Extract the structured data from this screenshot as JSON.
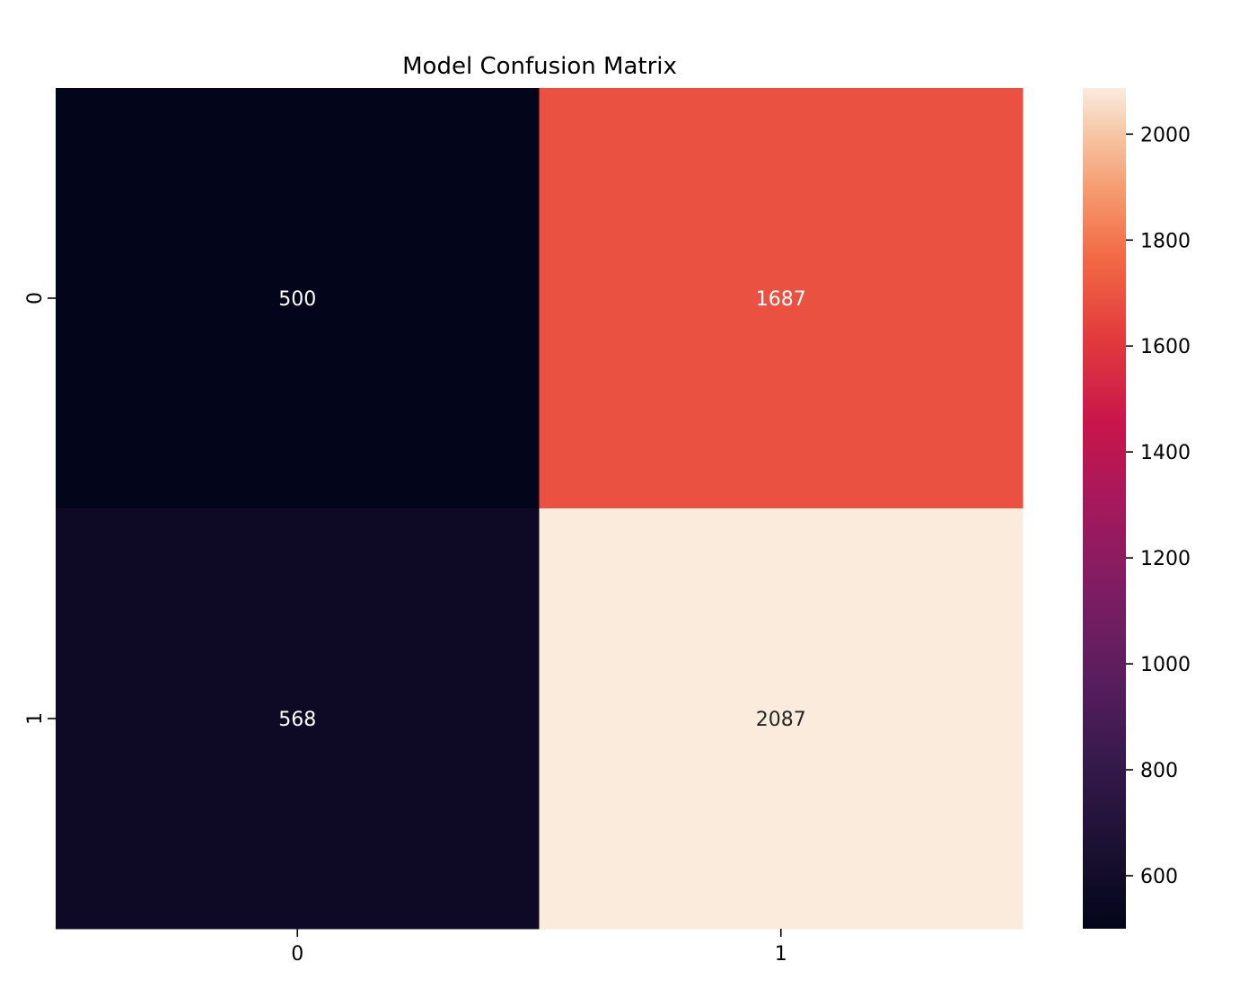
{
  "chart_data": {
    "type": "heatmap",
    "title": "Model Confusion Matrix",
    "xlabel": "",
    "ylabel": "",
    "x_labels": [
      "0",
      "1"
    ],
    "y_labels": [
      "0",
      "1"
    ],
    "values": [
      [
        500,
        1687
      ],
      [
        568,
        2087
      ]
    ],
    "cell_labels": [
      [
        "500",
        "1687"
      ],
      [
        "568",
        "2087"
      ]
    ],
    "colormap": "rocket",
    "colorbar": {
      "range": [
        500,
        2087
      ],
      "ticks": [
        600,
        800,
        1000,
        1200,
        1400,
        1600,
        1800,
        2000
      ],
      "tick_labels": [
        "600",
        "800",
        "1000",
        "1200",
        "1400",
        "1600",
        "1800",
        "2000"
      ]
    },
    "grid": false
  }
}
